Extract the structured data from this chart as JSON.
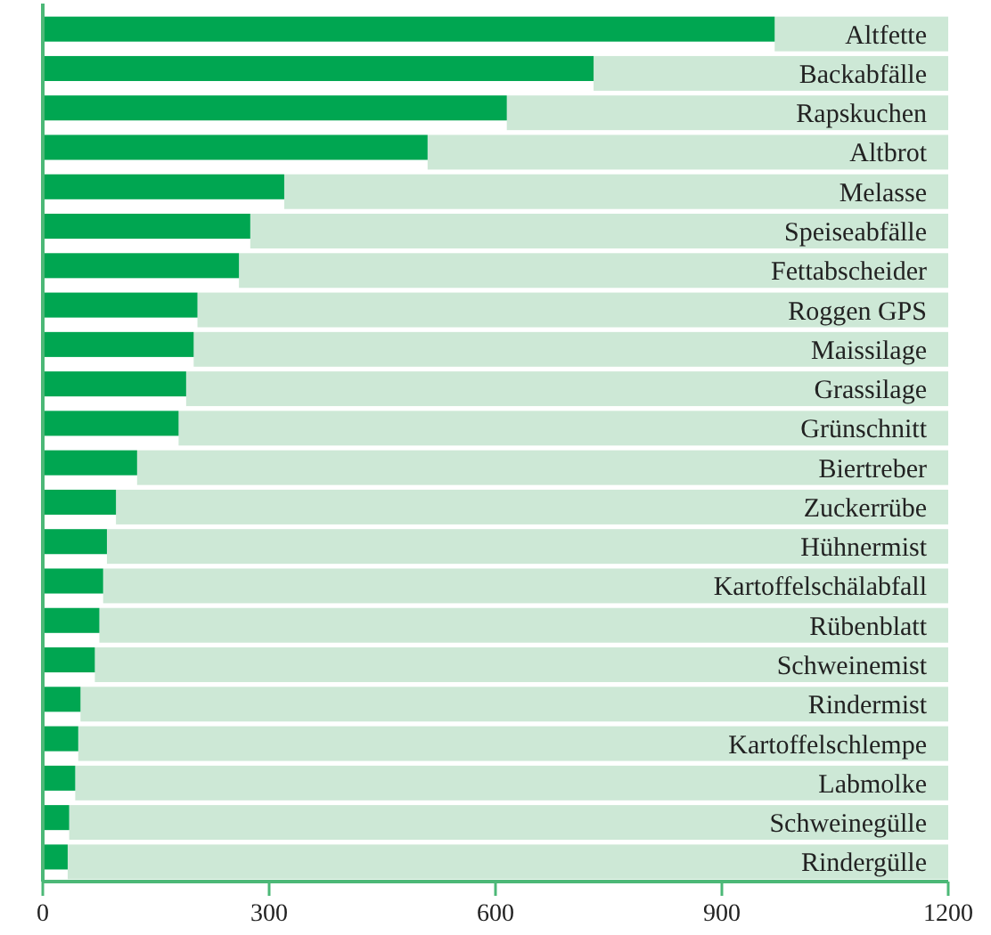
{
  "chart_data": {
    "type": "bar",
    "orientation": "horizontal",
    "stacked": true,
    "categories": [
      "Altfette",
      "Backabfälle",
      "Rapskuchen",
      "Altbrot",
      "Melasse",
      "Speiseabfälle",
      "Fettabscheider",
      "Roggen GPS",
      "Maissilage",
      "Grassilage",
      "Grünschnitt",
      "Biertreber",
      "Zuckerrübe",
      "Hühnermist",
      "Kartoffelschälabfall",
      "Rübenblatt",
      "Schweinemist",
      "Rindermist",
      "Kartoffelschlempe",
      "Labmolke",
      "Schweinegülle",
      "Rindergülle"
    ],
    "series": [
      {
        "color": "#00a651",
        "values": [
          970,
          730,
          615,
          510,
          320,
          275,
          260,
          205,
          200,
          190,
          180,
          125,
          97,
          85,
          80,
          75,
          69,
          50,
          47,
          43,
          35,
          33
        ]
      },
      {
        "color": "#cde8d6",
        "values": [
          230,
          470,
          585,
          690,
          880,
          925,
          940,
          995,
          1000,
          1010,
          1020,
          1075,
          1103,
          1115,
          1120,
          1125,
          1131,
          1150,
          1153,
          1157,
          1165,
          1167
        ]
      }
    ],
    "xlim": [
      0,
      1200
    ],
    "xticks": [
      0,
      300,
      600,
      900,
      1200
    ]
  }
}
